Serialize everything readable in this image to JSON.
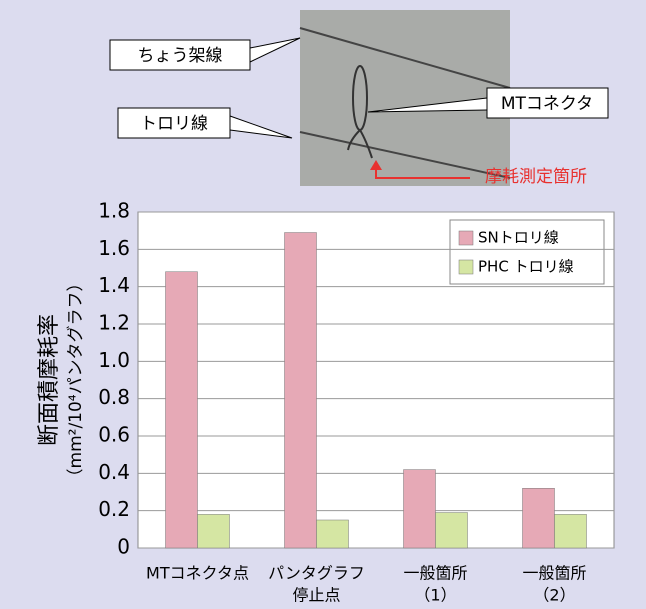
{
  "chart_data": {
    "type": "bar",
    "annotations": [
      "ちょう架線",
      "トロリ線",
      "MTコネクタ",
      "摩耗測定箇所"
    ],
    "y_label": "断面積摩耗率",
    "y_unit": "（mm²/10⁴パンタグラフ）",
    "categories": [
      [
        "MTコネクタ点"
      ],
      [
        "パンタグラフ",
        "停止点"
      ],
      [
        "一般箇所",
        "（1）"
      ],
      [
        "一般箇所",
        "（2）"
      ]
    ],
    "series": [
      {
        "name": "SNトロリ線",
        "color": "#e6a9b6",
        "values": [
          1.48,
          1.69,
          0.42,
          0.32
        ]
      },
      {
        "name": "PHC トロリ線",
        "color": "#d5e6a3",
        "values": [
          0.18,
          0.15,
          0.19,
          0.18
        ]
      }
    ],
    "ylim": [
      0,
      1.8
    ],
    "yticks": [
      0,
      0.2,
      0.4,
      0.6,
      0.8,
      {
        "value": 1,
        "label": "1.0"
      },
      1.2,
      1.4,
      1.6,
      1.8
    ],
    "grid": true,
    "legend": "top-right"
  }
}
